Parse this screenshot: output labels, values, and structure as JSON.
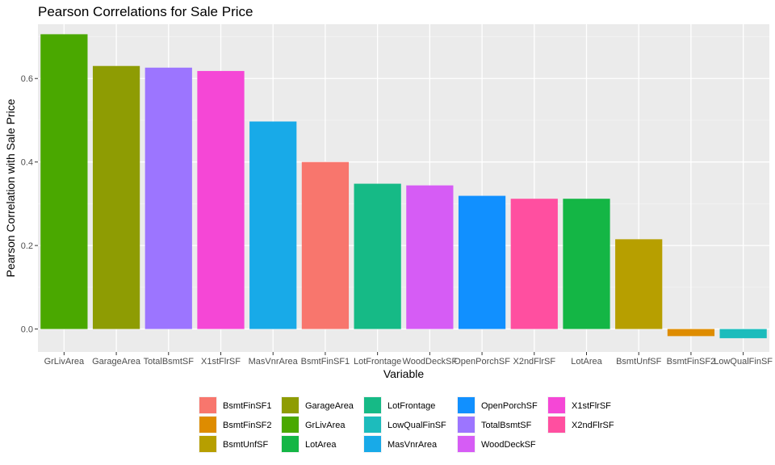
{
  "chart_data": {
    "type": "bar",
    "title": "Pearson Correlations for Sale Price",
    "xlabel": "Variable",
    "ylabel": "Pearson Correlation with Sale Price",
    "ylim": [
      -0.055,
      0.73
    ],
    "yticks": [
      0.0,
      0.2,
      0.4,
      0.6
    ],
    "ytick_labels": [
      "0.0",
      "0.2",
      "0.4",
      "0.6"
    ],
    "grid": true,
    "legend_position": "bottom",
    "categories": [
      "GrLivArea",
      "GarageArea",
      "TotalBsmtSF",
      "X1stFlrSF",
      "MasVnrArea",
      "BsmtFinSF1",
      "LotFrontage",
      "WoodDeckSF",
      "OpenPorchSF",
      "X2ndFlrSF",
      "LotArea",
      "BsmtUnfSF",
      "BsmtFinSF2",
      "LowQualFinSF"
    ],
    "values": [
      0.706,
      0.63,
      0.626,
      0.618,
      0.497,
      0.4,
      0.348,
      0.344,
      0.319,
      0.312,
      0.312,
      0.215,
      -0.017,
      -0.022
    ],
    "colors": {
      "BsmtFinSF1": "#F8766D",
      "BsmtFinSF2": "#DE8C00",
      "BsmtUnfSF": "#B79F00",
      "GarageArea": "#8E9C03",
      "GrLivArea": "#4AA800",
      "LotArea": "#14B645",
      "LotFrontage": "#16BA86",
      "LowQualFinSF": "#1DBCBC",
      "MasVnrArea": "#18AAE8",
      "OpenPorchSF": "#1190FF",
      "TotalBsmtSF": "#9C75FF",
      "WoodDeckSF": "#D65CF5",
      "X1stFlrSF": "#F547D6",
      "X2ndFlrSF": "#FF4FA0"
    },
    "legend_entries": [
      "BsmtFinSF1",
      "BsmtFinSF2",
      "BsmtUnfSF",
      "GarageArea",
      "GrLivArea",
      "LotArea",
      "LotFrontage",
      "LowQualFinSF",
      "MasVnrArea",
      "OpenPorchSF",
      "TotalBsmtSF",
      "WoodDeckSF",
      "X1stFlrSF",
      "X2ndFlrSF"
    ]
  }
}
